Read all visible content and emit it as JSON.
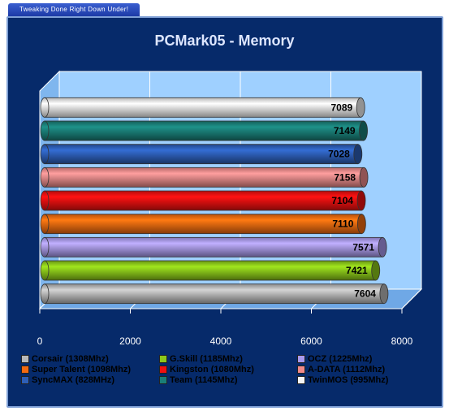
{
  "header": {
    "tab_label": "Tweaking Done Right Down Under!"
  },
  "chart_data": {
    "type": "bar",
    "orientation": "horizontal",
    "title": "PCMark05 - Memory",
    "xlabel": "",
    "ylabel": "",
    "xlim": [
      0,
      8000
    ],
    "xticks": [
      0,
      2000,
      4000,
      6000,
      8000
    ],
    "grid": true,
    "legend_position": "bottom",
    "series": [
      {
        "name": "TwinMOS (995Mhz)",
        "value": 7089,
        "color": "#f4f4f4"
      },
      {
        "name": "Team (1145Mhz)",
        "value": 7149,
        "color": "#1a7f78"
      },
      {
        "name": "SyncMAX (828MHz)",
        "value": 7028,
        "color": "#2d5fb8"
      },
      {
        "name": "A-DATA (1112Mhz)",
        "value": 7158,
        "color": "#f08a8a"
      },
      {
        "name": "Kingston (1080Mhz)",
        "value": 7104,
        "color": "#f01010"
      },
      {
        "name": "Super Talent (1098Mhz)",
        "value": 7110,
        "color": "#f46a10"
      },
      {
        "name": "OCZ (1225Mhz)",
        "value": 7571,
        "color": "#a899ee"
      },
      {
        "name": "G.Skill (1185Mhz)",
        "value": 7421,
        "color": "#8cc81a"
      },
      {
        "name": "Corsair (1308Mhz)",
        "value": 7604,
        "color": "#b8b8b8"
      }
    ],
    "legend": [
      "Corsair (1308Mhz)",
      "G.Skill (1185Mhz)",
      "OCZ (1225Mhz)",
      "Super Talent (1098Mhz)",
      "Kingston (1080Mhz)",
      "A-DATA (1112Mhz)",
      "SyncMAX (828MHz)",
      "Team (1145Mhz)",
      "TwinMOS (995Mhz)"
    ]
  }
}
